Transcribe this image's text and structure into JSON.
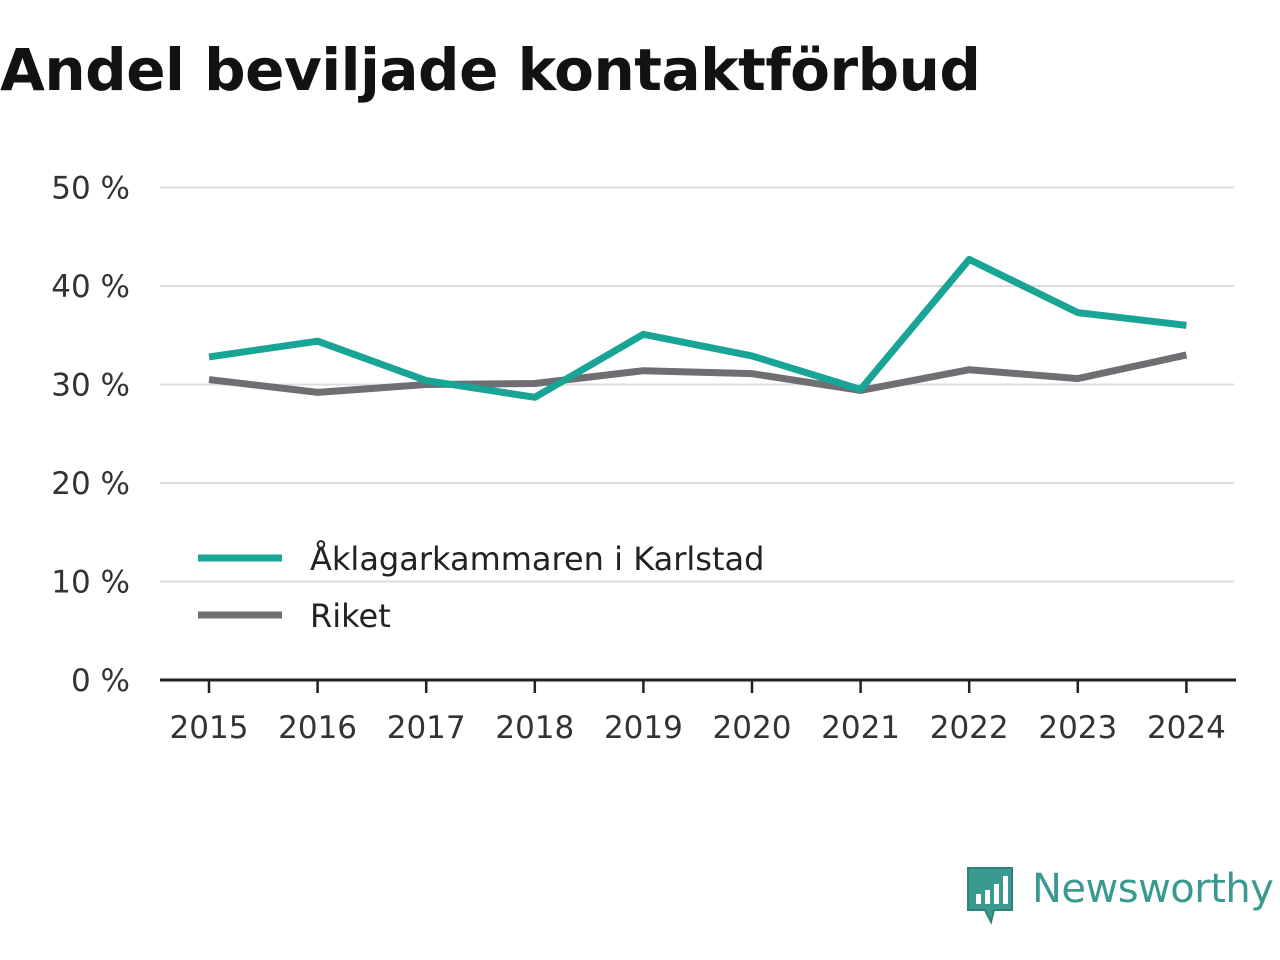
{
  "chart_data": {
    "type": "line",
    "title": "Andel beviljade kontaktförbud",
    "categories": [
      "2015",
      "2016",
      "2017",
      "2018",
      "2019",
      "2020",
      "2021",
      "2022",
      "2023",
      "2024"
    ],
    "y_ticks": [
      "0 %",
      "10 %",
      "20 %",
      "30 %",
      "40 %",
      "50 %"
    ],
    "ylim": [
      0,
      50
    ],
    "grid": true,
    "legend_position": "lower-left",
    "series": [
      {
        "name": "Åklagarkammaren i Karlstad",
        "color": "#18a596",
        "values": [
          32.8,
          34.4,
          30.4,
          28.7,
          35.1,
          32.9,
          29.5,
          42.7,
          37.3,
          36.0
        ]
      },
      {
        "name": "Riket",
        "color": "#6f6e73",
        "values": [
          30.5,
          29.2,
          30.0,
          30.1,
          31.4,
          31.1,
          29.4,
          31.5,
          30.6,
          33.0
        ]
      }
    ]
  },
  "branding": {
    "name": "Newsworthy",
    "color": "#3a9a90"
  }
}
